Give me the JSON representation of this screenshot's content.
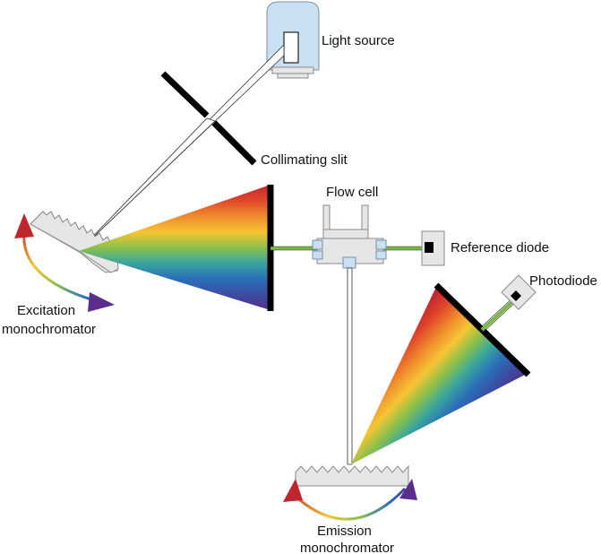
{
  "labels": {
    "light_source": "Light source",
    "collimating_slit": "Collimating slit",
    "flow_cell": "Flow cell",
    "reference_diode": "Reference diode",
    "photodiode": "Photodiode",
    "excitation_line1": "Excitation",
    "excitation_line2": "monochromator",
    "emission_line1": "Emission",
    "emission_line2": "monochromator"
  },
  "colors": {
    "lamp_fill": "#c9dff2",
    "lamp_stroke": "#7a8fa3",
    "housing_fill": "#e6e6e6",
    "housing_stroke": "#8a8a8a",
    "beam_green": "#7ab648",
    "slit": "#000000",
    "spectrum": [
      "#c0262d",
      "#e0452a",
      "#ef8a2c",
      "#f6c534",
      "#d7d43a",
      "#8cc04a",
      "#3aa79c",
      "#2a6fb8",
      "#3b4ba0",
      "#5b2d8c"
    ],
    "arrow_red": "#c0262d",
    "arrow_purple": "#5b2d8c"
  }
}
